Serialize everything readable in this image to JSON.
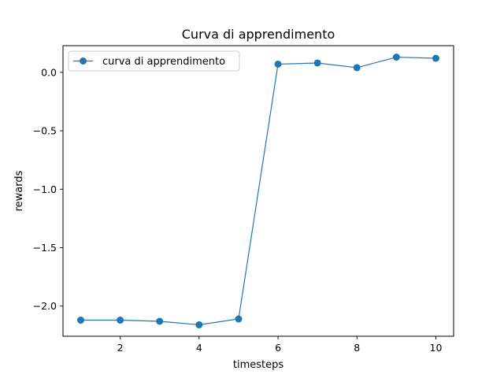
{
  "chart_data": {
    "type": "line",
    "title": "Curva di apprendimento",
    "xlabel": "timesteps",
    "ylabel": "rewards",
    "xlim": [
      0.55,
      10.45
    ],
    "ylim": [
      -2.258,
      0.228
    ],
    "xticks": [
      2,
      4,
      6,
      8,
      10
    ],
    "xtick_labels": [
      "2",
      "4",
      "6",
      "8",
      "10"
    ],
    "yticks": [
      0.0,
      -0.5,
      -1.0,
      -1.5,
      -2.0
    ],
    "ytick_labels": [
      "0.0",
      "−0.5",
      "−1.0",
      "−1.5",
      "−2.0"
    ],
    "grid": false,
    "legend_position": "top-left",
    "series": [
      {
        "name": "curva di apprendimento",
        "color": "#1f77b4",
        "marker": "circle",
        "x": [
          1,
          2,
          3,
          4,
          5,
          6,
          7,
          8,
          9,
          10
        ],
        "y": [
          -2.12,
          -2.12,
          -2.13,
          -2.16,
          -2.11,
          0.07,
          0.08,
          0.04,
          0.13,
          0.12
        ]
      }
    ]
  }
}
